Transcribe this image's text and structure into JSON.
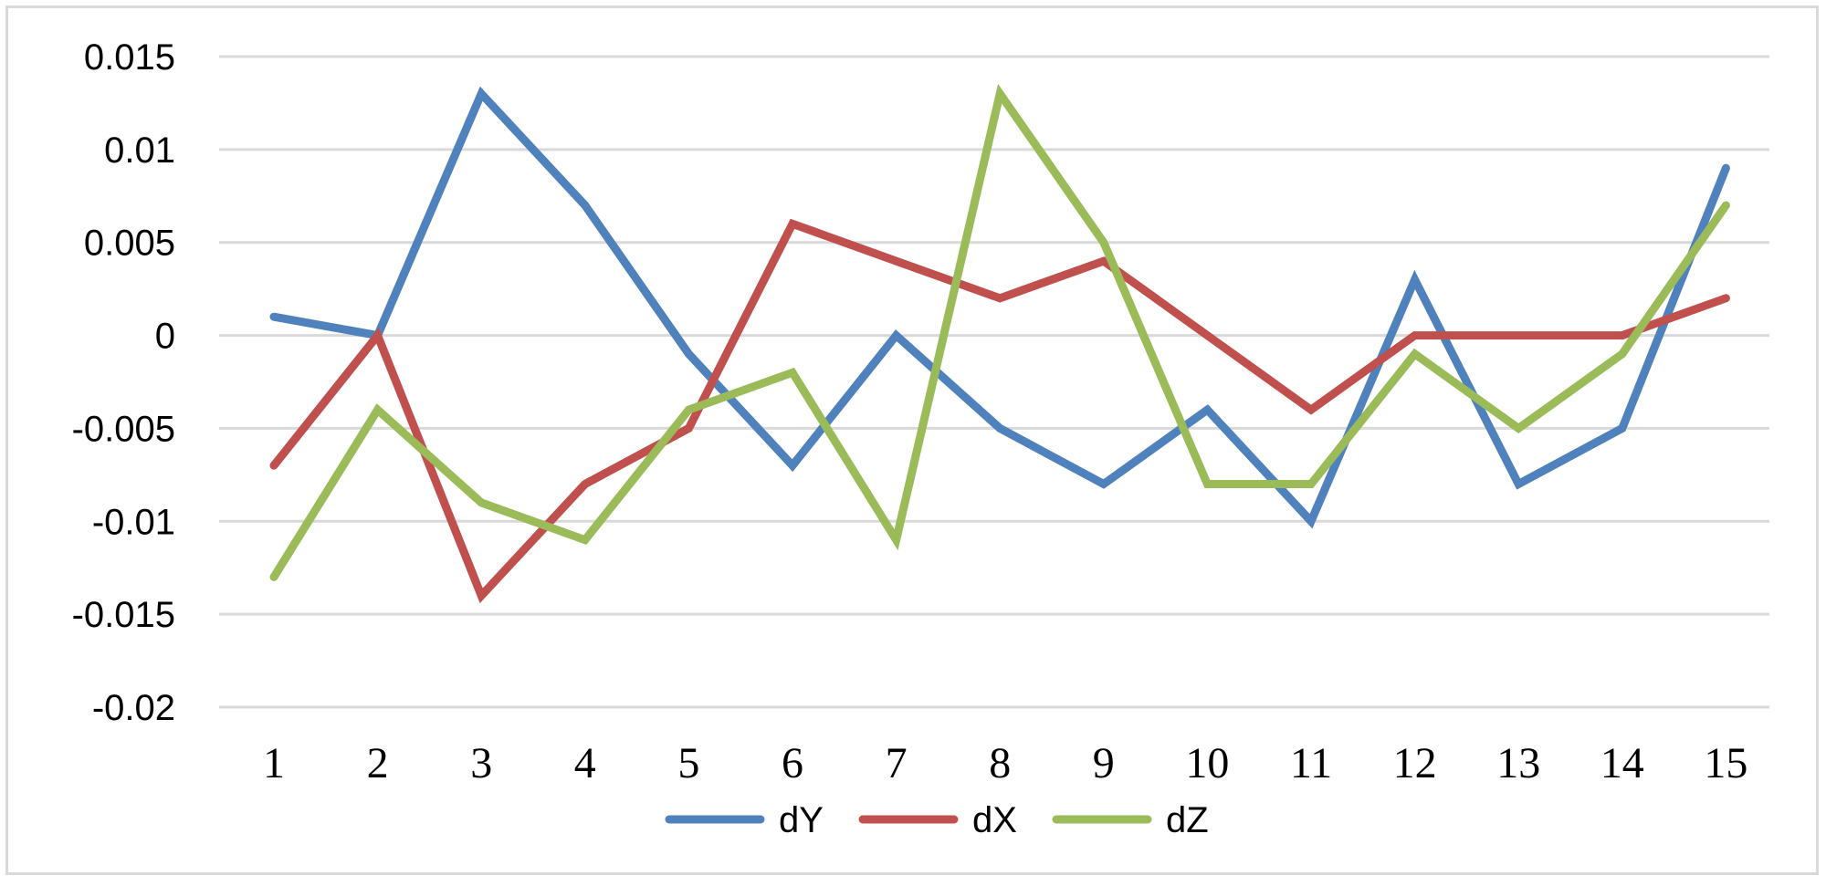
{
  "chart_data": {
    "type": "line",
    "title": "",
    "xlabel": "",
    "ylabel": "",
    "x": [
      1,
      2,
      3,
      4,
      5,
      6,
      7,
      8,
      9,
      10,
      11,
      12,
      13,
      14,
      15
    ],
    "ylim": [
      -0.02,
      0.015
    ],
    "yticks": [
      0.015,
      0.01,
      0.005,
      0,
      -0.005,
      -0.01,
      -0.015,
      -0.02
    ],
    "ytick_labels": [
      "0.015",
      "0.01",
      "0.005",
      "0",
      "-0.005",
      "-0.01",
      "-0.015",
      "-0.02"
    ],
    "grid": true,
    "legend_position": "bottom",
    "series": [
      {
        "name": "dY",
        "color": "#4f81bd",
        "values": [
          0.001,
          0,
          0.013,
          0.007,
          -0.001,
          -0.007,
          0,
          -0.005,
          -0.008,
          -0.004,
          -0.01,
          0.003,
          -0.008,
          -0.005,
          0.009
        ]
      },
      {
        "name": "dX",
        "color": "#c0504d",
        "values": [
          -0.007,
          0,
          -0.014,
          -0.008,
          -0.005,
          0.006,
          0.004,
          0.002,
          0.004,
          0,
          -0.004,
          0,
          0,
          0,
          0.002
        ]
      },
      {
        "name": "dZ",
        "color": "#9bbb59",
        "values": [
          -0.013,
          -0.004,
          -0.009,
          -0.011,
          -0.004,
          -0.002,
          -0.011,
          0.013,
          0.005,
          -0.008,
          -0.008,
          -0.001,
          -0.005,
          -0.001,
          0.007
        ]
      }
    ],
    "gridline_color": "#d9d9d9"
  }
}
